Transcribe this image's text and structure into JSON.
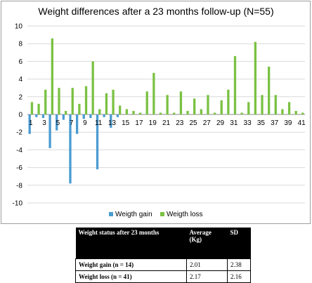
{
  "chart_data": {
    "type": "bar",
    "title": "Weight differences after a 23 months follow-up (N=55)",
    "ylim": [
      -10,
      10
    ],
    "yticks": [
      10,
      8,
      6,
      4,
      2,
      0,
      -2,
      -4,
      -6,
      -8,
      -10
    ],
    "xticks": [
      "1",
      "3",
      "5",
      "7",
      "9",
      "11",
      "13",
      "15",
      "17",
      "19",
      "21",
      "23",
      "25",
      "27",
      "29",
      "31",
      "33",
      "35",
      "37",
      "39",
      "41"
    ],
    "grid": true,
    "legend_position": "bottom",
    "categories": [
      "1",
      "2",
      "3",
      "4",
      "5",
      "6",
      "7",
      "8",
      "9",
      "10",
      "11",
      "12",
      "13",
      "14",
      "15",
      "16",
      "17",
      "18",
      "19",
      "20",
      "21",
      "22",
      "23",
      "24",
      "25",
      "26",
      "27",
      "28",
      "29",
      "30",
      "31",
      "32",
      "33",
      "34",
      "35",
      "36",
      "37",
      "38",
      "39",
      "40",
      "41"
    ],
    "series": [
      {
        "name": "Weigth gain",
        "color": "#4a9bd1",
        "values": [
          -2.2,
          -0.3,
          -0.4,
          -3.8,
          -1.8,
          -0.6,
          -7.8,
          -2.2,
          -0.5,
          -0.4,
          -6.2,
          -0.3,
          -1.5,
          -0.3,
          null,
          null,
          null,
          null,
          null,
          null,
          null,
          null,
          null,
          null,
          null,
          null,
          null,
          null,
          null,
          null,
          null,
          null,
          null,
          null,
          null,
          null,
          null,
          null,
          null,
          null,
          null
        ]
      },
      {
        "name": "Weigth loss",
        "color": "#7ac142",
        "values": [
          1.4,
          1.2,
          2.8,
          8.6,
          3.0,
          0.4,
          3.0,
          1.2,
          3.2,
          6.0,
          0.6,
          2.4,
          2.8,
          1.0,
          0.6,
          0.4,
          0.2,
          2.6,
          4.7,
          0.2,
          2.2,
          0.2,
          2.6,
          0.4,
          1.8,
          0.6,
          2.2,
          0.2,
          1.6,
          2.8,
          6.6,
          0.2,
          1.4,
          8.2,
          2.2,
          5.4,
          2.2,
          0.6,
          1.4,
          0.4,
          0.2
        ]
      }
    ]
  },
  "table": {
    "headers": [
      "Weight status after 23 months",
      "Average (Kg)",
      "SD"
    ],
    "rows": [
      [
        "Weight gain (n = 14)",
        "2.01",
        "2.38"
      ],
      [
        "Weight loss (n = 41)",
        "2.17",
        "2.16"
      ]
    ]
  }
}
